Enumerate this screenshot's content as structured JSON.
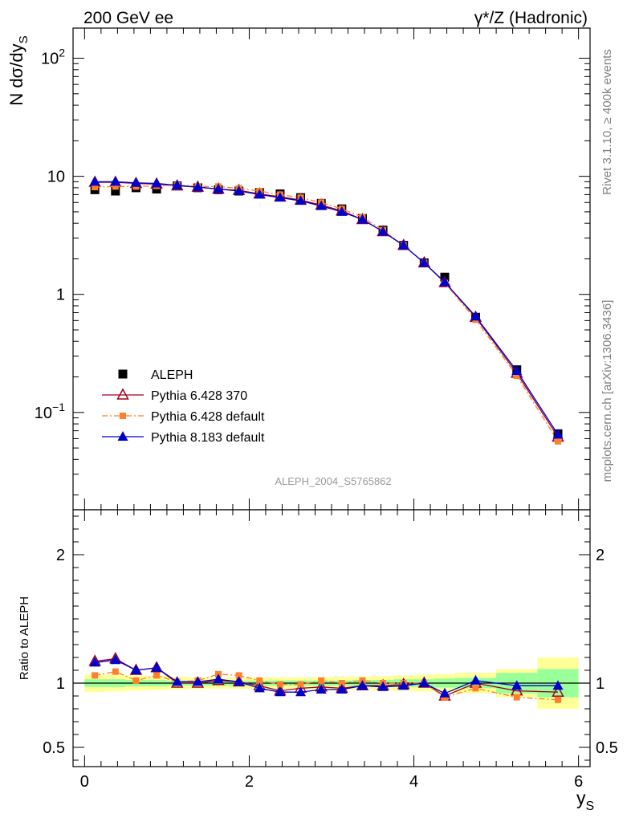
{
  "header": {
    "left": "200 GeV ee",
    "right": "γ*/Z (Hadronic)"
  },
  "side_labels": {
    "rivet": "Rivet 3.1.10, ≥ 400k events",
    "mcplots": "mcplots.cern.ch [arXiv:1306.3436]"
  },
  "analysis_id": "ALEPH_2004_S5765862",
  "chart_data": [
    {
      "type": "scatter",
      "title": "",
      "ylabel": "N dσ/dy_S",
      "ylabel_main": "N dσ/dy",
      "ylabel_sub": "S",
      "yscale": "log",
      "ylim": [
        0.015,
        180
      ],
      "xlim": [
        -0.14,
        6.14
      ],
      "y_ticks": [
        {
          "value": 0.1,
          "base": "10",
          "exp": "−1",
          "plain": ""
        },
        {
          "value": 1,
          "base": "",
          "exp": "",
          "plain": "1"
        },
        {
          "value": 10,
          "base": "",
          "exp": "",
          "plain": "10"
        },
        {
          "value": 100,
          "base": "10",
          "exp": "2",
          "plain": ""
        }
      ],
      "legend": [
        "ALEPH",
        "Pythia 6.428 370",
        "Pythia 6.428 default",
        "Pythia 8.183 default"
      ],
      "legend_position": "bottom-left",
      "series": [
        {
          "name": "ALEPH",
          "marker": "filled-square",
          "color": "#000000",
          "x": [
            0.125,
            0.375,
            0.625,
            0.875,
            1.125,
            1.375,
            1.625,
            1.875,
            2.125,
            2.375,
            2.625,
            2.875,
            3.125,
            3.375,
            3.625,
            3.875,
            4.125,
            4.375,
            4.75,
            5.25,
            5.75
          ],
          "values": [
            7.7,
            7.5,
            8.0,
            7.8,
            8.3,
            8.0,
            7.7,
            7.5,
            7.3,
            7.1,
            6.6,
            5.9,
            5.3,
            4.4,
            3.5,
            2.6,
            1.85,
            1.4,
            0.64,
            0.23,
            0.066
          ]
        },
        {
          "name": "Pythia 6.428 370",
          "marker": "open-triangle",
          "color": "#a00020",
          "x": [
            0.125,
            0.375,
            0.625,
            0.875,
            1.125,
            1.375,
            1.625,
            1.875,
            2.125,
            2.375,
            2.625,
            2.875,
            3.125,
            3.375,
            3.625,
            3.875,
            4.125,
            4.375,
            4.75,
            5.25,
            5.75
          ],
          "values": [
            8.9,
            8.9,
            8.7,
            8.6,
            8.3,
            8.1,
            7.8,
            7.6,
            7.1,
            6.7,
            6.3,
            5.7,
            5.1,
            4.3,
            3.4,
            2.6,
            1.85,
            1.26,
            0.64,
            0.215,
            0.062
          ]
        },
        {
          "name": "Pythia 6.428 default",
          "marker": "filled-square-small",
          "color": "#ff7f2a",
          "x": [
            0.125,
            0.375,
            0.625,
            0.875,
            1.125,
            1.375,
            1.625,
            1.875,
            2.125,
            2.375,
            2.625,
            2.875,
            3.125,
            3.375,
            3.625,
            3.875,
            4.125,
            4.375,
            4.75,
            5.25,
            5.75
          ],
          "values": [
            8.1,
            8.2,
            8.2,
            8.3,
            8.4,
            8.2,
            8.2,
            7.9,
            7.5,
            7.0,
            6.6,
            6.0,
            5.3,
            4.5,
            3.5,
            2.6,
            1.85,
            1.25,
            0.61,
            0.205,
            0.057
          ]
        },
        {
          "name": "Pythia 8.183 default",
          "marker": "filled-triangle",
          "color": "#0000cc",
          "x": [
            0.125,
            0.375,
            0.625,
            0.875,
            1.125,
            1.375,
            1.625,
            1.875,
            2.125,
            2.375,
            2.625,
            2.875,
            3.125,
            3.375,
            3.625,
            3.875,
            4.125,
            4.375,
            4.75,
            5.25,
            5.75
          ],
          "values": [
            9.0,
            9.0,
            8.8,
            8.7,
            8.4,
            8.1,
            7.8,
            7.5,
            7.0,
            6.6,
            6.2,
            5.6,
            5.0,
            4.3,
            3.4,
            2.6,
            1.85,
            1.27,
            0.65,
            0.225,
            0.065
          ]
        }
      ]
    },
    {
      "type": "scatter",
      "title": "",
      "ylabel": "Ratio to ALEPH",
      "xlabel": "y_S",
      "xlabel_main": "y",
      "xlabel_sub": "S",
      "yscale": "linear",
      "ylim": [
        0.35,
        2.35
      ],
      "xlim": [
        -0.14,
        6.14
      ],
      "x_ticks": [
        0,
        2,
        4,
        6
      ],
      "y_ticks": [
        0.5,
        1,
        2
      ],
      "reference_line": 1,
      "bands": {
        "bin_edges": [
          0,
          0.25,
          0.5,
          0.75,
          1.0,
          1.25,
          1.5,
          1.75,
          2.0,
          2.25,
          2.5,
          2.75,
          3.0,
          3.25,
          3.5,
          3.75,
          4.0,
          4.25,
          4.5,
          5.0,
          5.5,
          6.0
        ],
        "inner_color": "#99ff99",
        "outer_color": "#ffff99",
        "inner_halfwidth": [
          0.03,
          0.03,
          0.025,
          0.025,
          0.02,
          0.02,
          0.02,
          0.02,
          0.02,
          0.02,
          0.02,
          0.02,
          0.02,
          0.025,
          0.025,
          0.03,
          0.03,
          0.035,
          0.04,
          0.08,
          0.11
        ],
        "outer_halfwidth": [
          0.07,
          0.065,
          0.06,
          0.055,
          0.05,
          0.045,
          0.045,
          0.045,
          0.045,
          0.045,
          0.045,
          0.045,
          0.05,
          0.05,
          0.055,
          0.06,
          0.065,
          0.07,
          0.08,
          0.11,
          0.2
        ]
      },
      "series": [
        {
          "name": "Pythia 6.428 370",
          "marker": "open-triangle",
          "color": "#a00020",
          "x": [
            0.125,
            0.375,
            0.625,
            0.875,
            1.125,
            1.375,
            1.625,
            1.875,
            2.125,
            2.375,
            2.625,
            2.875,
            3.125,
            3.375,
            3.625,
            3.875,
            4.125,
            4.375,
            4.75,
            5.25,
            5.75
          ],
          "values": [
            1.17,
            1.19,
            1.1,
            1.12,
            1.0,
            1.0,
            1.02,
            1.01,
            0.98,
            0.94,
            0.96,
            0.97,
            0.96,
            0.98,
            0.98,
            0.99,
            1.0,
            0.9,
            1.0,
            0.94,
            0.93
          ]
        },
        {
          "name": "Pythia 6.428 default",
          "marker": "filled-square-small",
          "color": "#ff7f2a",
          "x": [
            0.125,
            0.375,
            0.625,
            0.875,
            1.125,
            1.375,
            1.625,
            1.875,
            2.125,
            2.375,
            2.625,
            2.875,
            3.125,
            3.375,
            3.625,
            3.875,
            4.125,
            4.375,
            4.75,
            5.25,
            5.75
          ],
          "values": [
            1.06,
            1.09,
            1.02,
            1.06,
            1.01,
            1.02,
            1.07,
            1.06,
            1.02,
            0.99,
            0.99,
            1.02,
            1.0,
            1.02,
            1.0,
            1.0,
            1.0,
            0.89,
            0.96,
            0.89,
            0.87
          ]
        },
        {
          "name": "Pythia 8.183 default",
          "marker": "filled-triangle",
          "color": "#0000cc",
          "x": [
            0.125,
            0.375,
            0.625,
            0.875,
            1.125,
            1.375,
            1.625,
            1.875,
            2.125,
            2.375,
            2.625,
            2.875,
            3.125,
            3.375,
            3.625,
            3.875,
            4.125,
            4.375,
            4.75,
            5.25,
            5.75
          ],
          "values": [
            1.16,
            1.18,
            1.1,
            1.12,
            1.01,
            1.01,
            1.03,
            1.01,
            0.96,
            0.93,
            0.93,
            0.95,
            0.95,
            0.98,
            0.97,
            0.98,
            1.0,
            0.92,
            1.02,
            0.98,
            0.98
          ]
        }
      ]
    }
  ]
}
